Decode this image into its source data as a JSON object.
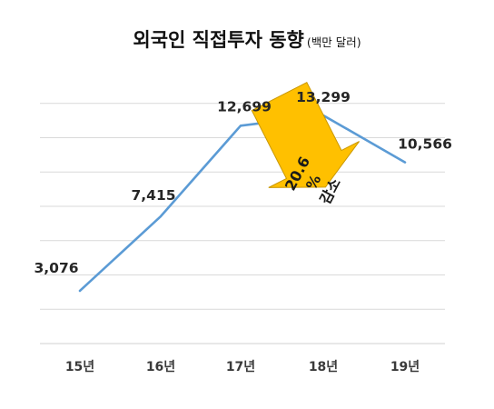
{
  "title": {
    "main": "외국인 직접투자 동향",
    "unit": "(백만 달러)"
  },
  "colors": {
    "line": "#5b9bd5",
    "grid": "#d9d9d9",
    "callout_fill": "#ffc000",
    "callout_stroke": "#c99700"
  },
  "chart_data": {
    "type": "line",
    "title": "외국인 직접투자 동향",
    "unit_label": "(백만 달러)",
    "categories": [
      "15년",
      "16년",
      "17년",
      "18년",
      "19년"
    ],
    "series": [
      {
        "values": [
          3076,
          7415,
          12699,
          13299,
          10566
        ]
      }
    ],
    "data_labels": [
      "3,076",
      "7,415",
      "12,699",
      "13,299",
      "10,566"
    ],
    "ylim": [
      0,
      16000
    ],
    "grid": true,
    "y_axis_labels_shown": false,
    "annotation": {
      "text_lines": [
        "20.6",
        "%",
        "감소"
      ],
      "shape": "arrow-down"
    }
  }
}
